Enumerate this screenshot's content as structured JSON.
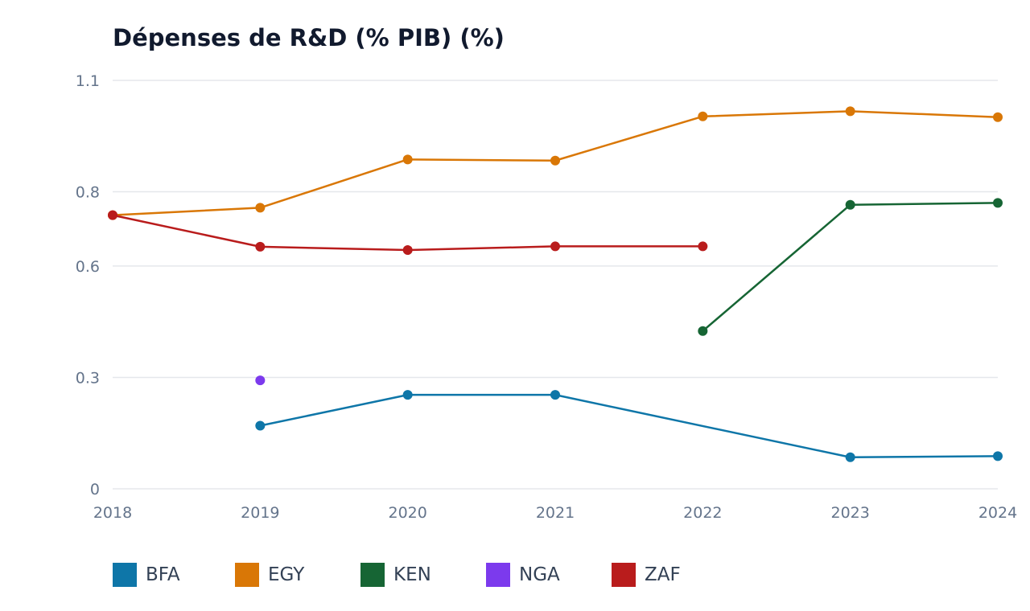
{
  "chart_data": {
    "type": "line",
    "title": "Dépenses de R&D (% PIB) (%)",
    "xlabel": "",
    "ylabel": "",
    "x": [
      2018,
      2019,
      2020,
      2021,
      2022,
      2023,
      2024
    ],
    "x_tick_labels": [
      "2018",
      "2019",
      "2020",
      "2021",
      "2022",
      "2023",
      "2024"
    ],
    "y_ticks": [
      0,
      0.3,
      0.6,
      0.8,
      1.1
    ],
    "y_tick_labels": [
      "0",
      "0.3",
      "0.6",
      "0.8",
      "1.1"
    ],
    "ylim": [
      0,
      1.1
    ],
    "grid": true,
    "legend_position": "bottom-left",
    "series": [
      {
        "name": "BFA",
        "color": "#0e76a8",
        "values": [
          null,
          0.17,
          0.253,
          0.253,
          null,
          0.085,
          0.088
        ]
      },
      {
        "name": "EGY",
        "color": "#d97706",
        "values": [
          0.737,
          0.757,
          0.887,
          0.884,
          1.003,
          1.017,
          1.001
        ]
      },
      {
        "name": "KEN",
        "color": "#166534",
        "values": [
          null,
          null,
          null,
          null,
          0.425,
          0.765,
          0.77
        ]
      },
      {
        "name": "NGA",
        "color": "#7c3aed",
        "values": [
          null,
          0.292,
          null,
          null,
          null,
          null,
          null
        ]
      },
      {
        "name": "ZAF",
        "color": "#b91c1c",
        "values": [
          0.737,
          0.652,
          0.643,
          0.653,
          0.653,
          null,
          null
        ]
      }
    ]
  }
}
